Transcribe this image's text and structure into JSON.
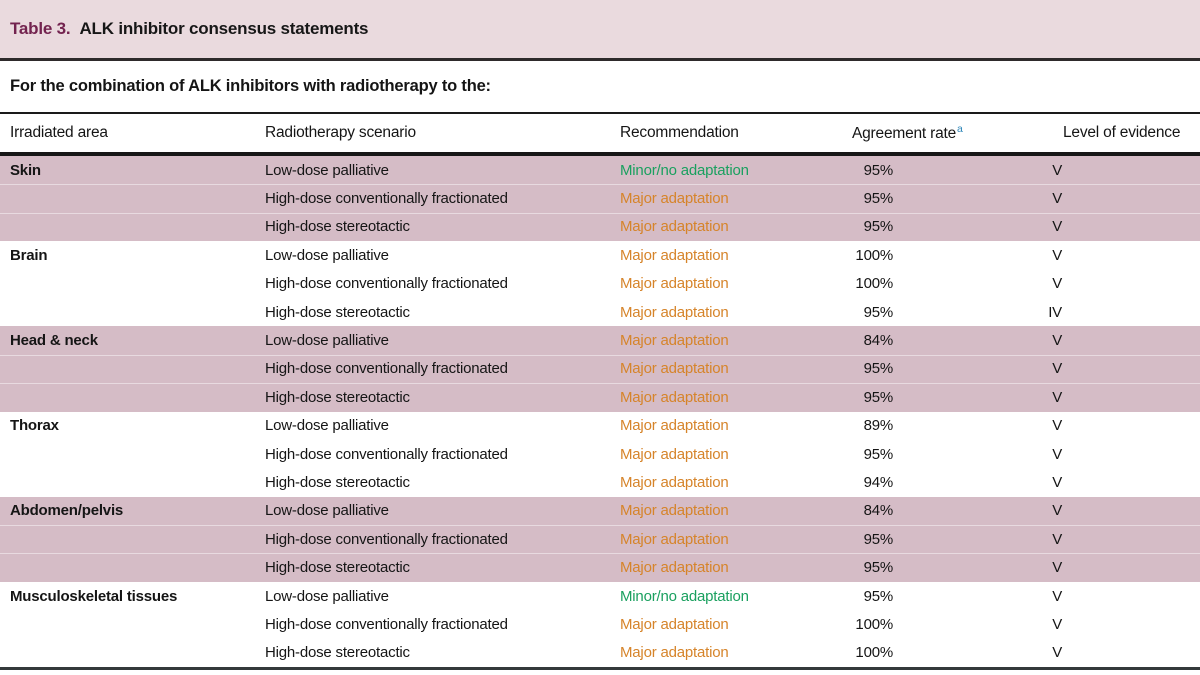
{
  "table": {
    "label": "Table 3.",
    "title": "ALK inhibitor consensus statements",
    "subtitle": "For the combination of ALK inhibitors with radiotherapy to the:",
    "columns": [
      "Irradiated area",
      "Radiotherapy scenario",
      "Recommendation",
      "Agreement rate",
      "Level of evidence"
    ],
    "agreement_rate_footnote_marker": "a",
    "colors": {
      "minor": "#1aa05f",
      "major": "#d6842a",
      "shaded_row": "#d5bcc6",
      "title_band": "#eadade",
      "table_label_accent": "#73234f",
      "footnote_marker": "#2e86b8"
    },
    "groups": [
      {
        "area": "Skin",
        "shaded": true,
        "rows": [
          {
            "scenario": "Low-dose palliative",
            "recommendation": "Minor/no adaptation",
            "rec_type": "minor",
            "agreement": "95%",
            "evidence": "V"
          },
          {
            "scenario": "High-dose conventionally fractionated",
            "recommendation": "Major adaptation",
            "rec_type": "major",
            "agreement": "95%",
            "evidence": "V"
          },
          {
            "scenario": "High-dose stereotactic",
            "recommendation": "Major adaptation",
            "rec_type": "major",
            "agreement": "95%",
            "evidence": "V"
          }
        ]
      },
      {
        "area": "Brain",
        "shaded": false,
        "rows": [
          {
            "scenario": "Low-dose palliative",
            "recommendation": "Major adaptation",
            "rec_type": "major",
            "agreement": "100%",
            "evidence": "V"
          },
          {
            "scenario": "High-dose conventionally fractionated",
            "recommendation": "Major adaptation",
            "rec_type": "major",
            "agreement": "100%",
            "evidence": "V"
          },
          {
            "scenario": "High-dose stereotactic",
            "recommendation": "Major adaptation",
            "rec_type": "major",
            "agreement": "95%",
            "evidence": "IV"
          }
        ]
      },
      {
        "area": "Head & neck",
        "shaded": true,
        "rows": [
          {
            "scenario": "Low-dose palliative",
            "recommendation": "Major adaptation",
            "rec_type": "major",
            "agreement": "84%",
            "evidence": "V"
          },
          {
            "scenario": "High-dose conventionally fractionated",
            "recommendation": "Major adaptation",
            "rec_type": "major",
            "agreement": "95%",
            "evidence": "V"
          },
          {
            "scenario": "High-dose stereotactic",
            "recommendation": "Major adaptation",
            "rec_type": "major",
            "agreement": "95%",
            "evidence": "V"
          }
        ]
      },
      {
        "area": "Thorax",
        "shaded": false,
        "rows": [
          {
            "scenario": "Low-dose palliative",
            "recommendation": "Major adaptation",
            "rec_type": "major",
            "agreement": "89%",
            "evidence": "V"
          },
          {
            "scenario": "High-dose conventionally fractionated",
            "recommendation": "Major adaptation",
            "rec_type": "major",
            "agreement": "95%",
            "evidence": "V"
          },
          {
            "scenario": "High-dose stereotactic",
            "recommendation": "Major adaptation",
            "rec_type": "major",
            "agreement": "94%",
            "evidence": "V"
          }
        ]
      },
      {
        "area": "Abdomen/pelvis",
        "shaded": true,
        "rows": [
          {
            "scenario": "Low-dose palliative",
            "recommendation": "Major adaptation",
            "rec_type": "major",
            "agreement": "84%",
            "evidence": "V"
          },
          {
            "scenario": "High-dose conventionally fractionated",
            "recommendation": "Major adaptation",
            "rec_type": "major",
            "agreement": "95%",
            "evidence": "V"
          },
          {
            "scenario": "High-dose stereotactic",
            "recommendation": "Major adaptation",
            "rec_type": "major",
            "agreement": "95%",
            "evidence": "V"
          }
        ]
      },
      {
        "area": "Musculoskeletal tissues",
        "shaded": false,
        "rows": [
          {
            "scenario": "Low-dose palliative",
            "recommendation": "Minor/no adaptation",
            "rec_type": "minor",
            "agreement": "95%",
            "evidence": "V"
          },
          {
            "scenario": "High-dose conventionally fractionated",
            "recommendation": "Major adaptation",
            "rec_type": "major",
            "agreement": "100%",
            "evidence": "V"
          },
          {
            "scenario": "High-dose stereotactic",
            "recommendation": "Major adaptation",
            "rec_type": "major",
            "agreement": "100%",
            "evidence": "V"
          }
        ]
      }
    ]
  }
}
